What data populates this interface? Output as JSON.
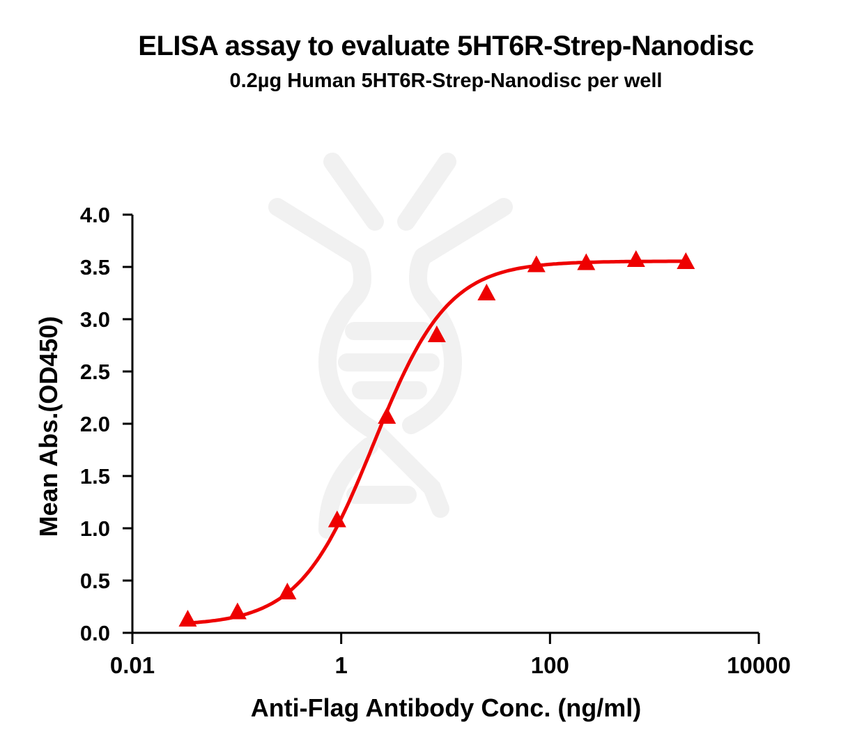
{
  "chart_data": {
    "type": "line",
    "title": "ELISA assay to evaluate 5HT6R-Strep-Nanodisc",
    "subtitle": "0.2µg Human 5HT6R-Strep-Nanodisc per well",
    "xlabel": "Anti-Flag Antibody Conc. (ng/ml)",
    "ylabel": "Mean Abs.(OD450)",
    "xscale": "log",
    "xlim": [
      0.01,
      10000
    ],
    "ylim": [
      0,
      4.0
    ],
    "x_ticks": [
      "0.01",
      "1",
      "100",
      "10000"
    ],
    "y_ticks": [
      "0.0",
      "0.5",
      "1.0",
      "1.5",
      "2.0",
      "2.5",
      "3.0",
      "3.5",
      "4.0"
    ],
    "grid": false,
    "legend": null,
    "series": [
      {
        "name": "Human 5HT6R-Strep-Nanodisc",
        "color": "#ee0000",
        "marker": "triangle",
        "fit": "4PL sigmoid",
        "x": [
          0.0339,
          0.1016,
          0.305,
          0.914,
          2.74,
          8.23,
          24.69,
          74.07,
          222.2,
          666.7,
          2000
        ],
        "y": [
          0.12,
          0.19,
          0.38,
          1.07,
          2.06,
          2.84,
          3.24,
          3.51,
          3.53,
          3.56,
          3.54
        ]
      }
    ]
  }
}
